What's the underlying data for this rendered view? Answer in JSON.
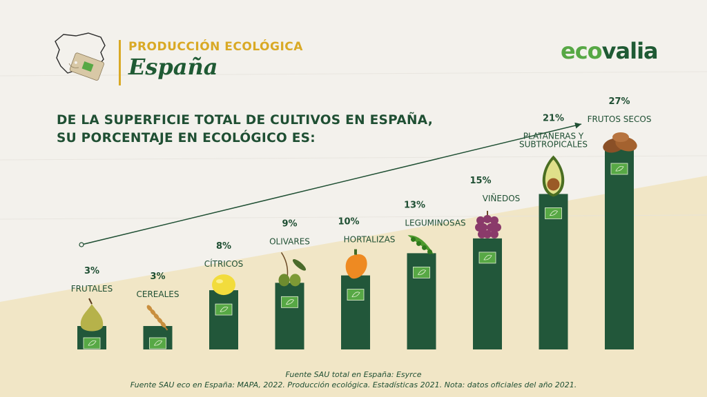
{
  "header": {
    "line1": "PRODUCCIÓN ECOLÓGICA",
    "line2": "España"
  },
  "brand": {
    "part1": "eco",
    "part2": "valia"
  },
  "headline": {
    "line1": "DE LA SUPERFICIE TOTAL DE CULTIVOS EN ESPAÑA,",
    "line2": "SU PORCENTAJE EN ECOLÓGICO ES:"
  },
  "colors": {
    "bar": "#22573a",
    "accent": "#d9a925",
    "brand_light": "#57a845",
    "brand_dark": "#1f5a34",
    "text": "#1f4f33",
    "background_light": "#f3f1ec",
    "background_band": "#f1e6c6"
  },
  "chart_data": {
    "type": "bar",
    "unit": "%",
    "ylim": [
      0,
      27
    ],
    "grid": false,
    "categories": [
      "FRUTALES",
      "CEREALES",
      "CÍTRICOS",
      "OLIVARES",
      "HORTALIZAS",
      "LEGUMINOSAS",
      "VIÑEDOS",
      "PLATANERAS Y SUBTROPICALES",
      "FRUTOS SECOS"
    ],
    "values": [
      3,
      3,
      8,
      9,
      10,
      13,
      15,
      21,
      27
    ],
    "value_labels": [
      "3%",
      "3%",
      "8%",
      "9%",
      "10%",
      "13%",
      "15%",
      "21%",
      "27%"
    ],
    "icons": [
      "pear-icon",
      "wheat-icon",
      "lemon-icon",
      "olives-icon",
      "pepper-icon",
      "peas-icon",
      "grapes-icon",
      "avocado-icon",
      "almonds-icon"
    ],
    "badge_icon": "eu-organic-leaf-icon",
    "trend_arrow": "increasing"
  },
  "sources": {
    "line1": "Fuente SAU total en España: Esyrce",
    "line2": "Fuente SAU eco en España: MAPA, 2022. Producción ecológica. Estadísticas 2021. Nota: datos oficiales del año 2021."
  }
}
